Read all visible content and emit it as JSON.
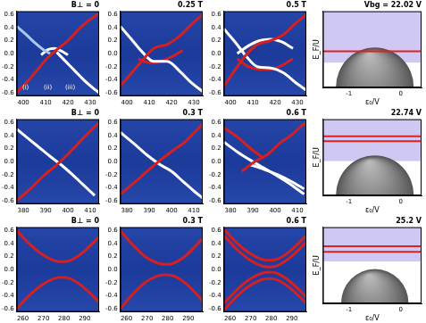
{
  "chart_data": [
    {
      "type": "line",
      "title": "B⊥ = 0",
      "xlim": [
        397,
        434
      ],
      "xticks": [
        400,
        410,
        420,
        430
      ],
      "ylim": [
        -0.65,
        0.65
      ],
      "yticks": [
        -0.6,
        -0.4,
        -0.2,
        {
          "value": 0,
          "label": "0.0"
        },
        0.2,
        0.4,
        0.6
      ],
      "grid": false,
      "series": [
        {
          "color": "#d42020",
          "x": [
            397,
            402,
            407,
            411,
            415,
            420,
            425,
            429,
            434
          ],
          "values": [
            -0.6,
            -0.42,
            -0.22,
            -0.06,
            0.06,
            0.2,
            0.38,
            0.5,
            0.62
          ]
        },
        {
          "color": "#ffffff",
          "x": [
            415,
            419,
            423,
            427,
            431,
            434
          ],
          "values": [
            0.02,
            -0.12,
            -0.26,
            -0.4,
            -0.52,
            -0.6
          ]
        },
        {
          "color": "#a8c8f0",
          "x": [
            397,
            401,
            405,
            409,
            412
          ],
          "values": [
            0.42,
            0.3,
            0.17,
            0.06,
            0.0
          ]
        },
        {
          "color": "#ffffff",
          "x": [
            408,
            411,
            414,
            417,
            420
          ],
          "values": [
            -0.02,
            0.06,
            0.08,
            0.04,
            -0.02
          ]
        }
      ],
      "annotations": [
        {
          "text": "(i)",
          "x": 401,
          "y": -0.52
        },
        {
          "text": "(ii)",
          "x": 411,
          "y": -0.52
        },
        {
          "text": "(iii)",
          "x": 421,
          "y": -0.52
        }
      ]
    },
    {
      "type": "line",
      "title": "0.25 T",
      "xlim": [
        397,
        434
      ],
      "xticks": [
        400,
        410,
        420,
        430
      ],
      "ylim": [
        -0.65,
        0.65
      ],
      "yticks": [
        -0.6,
        -0.4,
        -0.2,
        {
          "value": 0,
          "label": "0.0"
        },
        0.2,
        0.4,
        0.6
      ],
      "grid": false,
      "series": [
        {
          "color": "#d42020",
          "x": [
            397,
            402,
            407,
            412,
            418,
            424,
            429,
            434
          ],
          "values": [
            -0.5,
            -0.3,
            -0.1,
            0.08,
            0.14,
            0.28,
            0.45,
            0.6
          ]
        },
        {
          "color": "#ffffff",
          "x": [
            397,
            402,
            407,
            412,
            418,
            424,
            429,
            434
          ],
          "values": [
            0.42,
            0.22,
            0.02,
            -0.12,
            -0.12,
            -0.28,
            -0.45,
            -0.58
          ]
        },
        {
          "color": "#d42020",
          "x": [
            405,
            410,
            415,
            420,
            425
          ],
          "values": [
            -0.08,
            -0.14,
            -0.12,
            -0.05,
            0.05
          ]
        }
      ]
    },
    {
      "type": "line",
      "title": "0.5 T",
      "xlim": [
        397,
        434
      ],
      "xticks": [
        400,
        410,
        420,
        430
      ],
      "ylim": [
        -0.65,
        0.65
      ],
      "yticks": [
        -0.6,
        -0.4,
        -0.2,
        {
          "value": 0,
          "label": "0.0"
        },
        0.2,
        0.4,
        0.6
      ],
      "grid": false,
      "series": [
        {
          "color": "#d42020",
          "x": [
            397,
            402,
            407,
            412,
            418,
            424,
            429,
            434
          ],
          "values": [
            -0.5,
            -0.25,
            -0.02,
            0.14,
            0.2,
            0.3,
            0.46,
            0.6
          ]
        },
        {
          "color": "#ffffff",
          "x": [
            397,
            402,
            407,
            412,
            418,
            424,
            429,
            434
          ],
          "values": [
            0.38,
            0.18,
            -0.04,
            -0.2,
            -0.22,
            -0.3,
            -0.44,
            -0.56
          ]
        },
        {
          "color": "#ffffff",
          "x": [
            403,
            408,
            413,
            418,
            423,
            428
          ],
          "values": [
            0.0,
            0.12,
            0.2,
            0.22,
            0.18,
            0.08
          ]
        },
        {
          "color": "#d42020",
          "x": [
            403,
            408,
            413,
            418,
            423,
            428
          ],
          "values": [
            -0.08,
            -0.2,
            -0.24,
            -0.24,
            -0.18,
            -0.08
          ]
        }
      ]
    },
    {
      "type": "diagram",
      "title": "Vbg = 22.02 V",
      "x_label": "ε₀/V",
      "y_label": "E_F/U",
      "xlim": [
        -1.5,
        0.4
      ],
      "xticks": [
        -1,
        0
      ],
      "ylim": [
        -1,
        1
      ],
      "tick_labels": "x",
      "band": [
        -0.35,
        1
      ],
      "dome": {
        "x": [
          -1.25,
          0.25
        ],
        "top": 0.05
      },
      "levels": [
        -0.05
      ],
      "color": "#e02020"
    },
    {
      "type": "line",
      "title": "B⊥ = 0",
      "xlim": [
        377,
        414
      ],
      "xticks": [
        380,
        390,
        400,
        410
      ],
      "ylim": [
        -0.65,
        0.65
      ],
      "yticks": [
        -0.6,
        -0.4,
        -0.2,
        {
          "value": 0,
          "label": "0.0"
        },
        0.2,
        0.4,
        0.6
      ],
      "grid": false,
      "series": [
        {
          "color": "#d42020",
          "x": [
            377,
            383,
            389,
            395,
            399,
            403,
            408,
            414
          ],
          "values": [
            -0.6,
            -0.42,
            -0.22,
            -0.05,
            0.08,
            0.22,
            0.4,
            0.6
          ]
        },
        {
          "color": "#ffffff",
          "x": [
            377,
            382,
            387,
            392,
            397,
            402,
            407,
            412
          ],
          "values": [
            0.5,
            0.36,
            0.22,
            0.08,
            -0.05,
            -0.2,
            -0.36,
            -0.52
          ]
        }
      ]
    },
    {
      "type": "line",
      "title": "0.3 T",
      "xlim": [
        377,
        414
      ],
      "xticks": [
        380,
        390,
        400,
        410
      ],
      "ylim": [
        -0.65,
        0.65
      ],
      "yticks": [
        -0.6,
        -0.4,
        -0.2,
        {
          "value": 0,
          "label": "0.0"
        },
        0.2,
        0.4,
        0.6
      ],
      "grid": false,
      "series": [
        {
          "color": "#d42020",
          "x": [
            377,
            384,
            390,
            396,
            401,
            406,
            410,
            414
          ],
          "values": [
            -0.5,
            -0.3,
            -0.12,
            0.05,
            0.18,
            0.3,
            0.44,
            0.58
          ]
        },
        {
          "color": "#ffffff",
          "x": [
            377,
            383,
            389,
            395,
            400,
            405,
            410,
            414
          ],
          "values": [
            0.45,
            0.28,
            0.1,
            -0.05,
            -0.15,
            -0.3,
            -0.45,
            -0.56
          ]
        }
      ]
    },
    {
      "type": "line",
      "title": "0.6 T",
      "xlim": [
        377,
        414
      ],
      "xticks": [
        380,
        390,
        400,
        410
      ],
      "ylim": [
        -0.65,
        0.65
      ],
      "yticks": [
        -0.6,
        -0.4,
        -0.2,
        {
          "value": 0,
          "label": "0.0"
        },
        0.2,
        0.4,
        0.6
      ],
      "grid": false,
      "series": [
        {
          "color": "#d42020",
          "x": [
            385,
            391,
            397,
            402,
            407,
            412,
            414
          ],
          "values": [
            -0.15,
            0.0,
            0.12,
            0.28,
            0.4,
            0.55,
            0.6
          ]
        },
        {
          "color": "#ffffff",
          "x": [
            377,
            383,
            389,
            395,
            401,
            407,
            413
          ],
          "values": [
            0.3,
            0.15,
            0.02,
            -0.1,
            -0.22,
            -0.35,
            -0.5
          ]
        },
        {
          "color": "#ffffff",
          "x": [
            389,
            395,
            401,
            407,
            413
          ],
          "values": [
            -0.05,
            -0.12,
            -0.2,
            -0.3,
            -0.42
          ]
        },
        {
          "color": "#d42020",
          "x": [
            377,
            383,
            389,
            395
          ],
          "values": [
            0.52,
            0.38,
            0.2,
            0.05
          ]
        }
      ]
    },
    {
      "type": "diagram",
      "title": "22.74 V",
      "x_label": "ε₀/V",
      "y_label": "E_F/U",
      "xlim": [
        -1.5,
        0.4
      ],
      "xticks": [
        -1,
        0
      ],
      "ylim": [
        -1,
        1
      ],
      "tick_labels": "x",
      "band": [
        -0.1,
        1
      ],
      "dome": {
        "x": [
          -1.25,
          0.25
        ],
        "top": 0.05
      },
      "levels": [
        0.55,
        0.42
      ],
      "color": "#e02020"
    },
    {
      "type": "line",
      "title": "B⊥ = 0",
      "xlim": [
        257,
        297
      ],
      "xticks": [
        260,
        270,
        280,
        290
      ],
      "ylim": [
        -0.65,
        0.65
      ],
      "yticks": [
        -0.6,
        -0.4,
        -0.2,
        {
          "value": 0,
          "label": "0.0"
        },
        0.2,
        0.4,
        0.6
      ],
      "grid": false,
      "series": [
        {
          "color": "#d42020",
          "x": [
            257,
            263,
            269,
            275,
            279,
            283,
            289,
            297
          ],
          "values": [
            0.6,
            0.4,
            0.24,
            0.14,
            0.12,
            0.14,
            0.26,
            0.5
          ]
        },
        {
          "color": "#d42020",
          "x": [
            257,
            263,
            269,
            275,
            279,
            283,
            289,
            297
          ],
          "values": [
            -0.6,
            -0.4,
            -0.24,
            -0.14,
            -0.12,
            -0.14,
            -0.26,
            -0.5
          ]
        }
      ]
    },
    {
      "type": "line",
      "title": "0.3 T",
      "xlim": [
        257,
        297
      ],
      "xticks": [
        260,
        270,
        280,
        290
      ],
      "ylim": [
        -0.65,
        0.65
      ],
      "yticks": [
        -0.6,
        -0.4,
        -0.2,
        {
          "value": 0,
          "label": "0.0"
        },
        0.2,
        0.4,
        0.6
      ],
      "grid": false,
      "series": [
        {
          "color": "#d42020",
          "x": [
            257,
            263,
            269,
            275,
            279,
            283,
            289,
            297
          ],
          "values": [
            0.6,
            0.38,
            0.2,
            0.1,
            0.08,
            0.1,
            0.22,
            0.48
          ]
        },
        {
          "color": "#d42020",
          "x": [
            257,
            263,
            269,
            275,
            279,
            283,
            289,
            297
          ],
          "values": [
            -0.6,
            -0.38,
            -0.2,
            -0.1,
            -0.08,
            -0.1,
            -0.22,
            -0.48
          ]
        }
      ]
    },
    {
      "type": "line",
      "title": "0.6 T",
      "xlim": [
        257,
        297
      ],
      "xticks": [
        260,
        270,
        280,
        290
      ],
      "ylim": [
        -0.65,
        0.65
      ],
      "yticks": [
        -0.6,
        -0.4,
        -0.2,
        {
          "value": 0,
          "label": "0.0"
        },
        0.2,
        0.4,
        0.6
      ],
      "grid": false,
      "series": [
        {
          "color": "#d42020",
          "x": [
            257,
            263,
            269,
            275,
            279,
            283,
            289,
            297
          ],
          "values": [
            0.62,
            0.42,
            0.26,
            0.16,
            0.14,
            0.16,
            0.28,
            0.52
          ]
        },
        {
          "color": "#d42020",
          "x": [
            257,
            263,
            269,
            275,
            279,
            283,
            289,
            297
          ],
          "values": [
            0.52,
            0.32,
            0.16,
            0.06,
            0.04,
            0.06,
            0.18,
            0.42
          ]
        },
        {
          "color": "#d42020",
          "x": [
            257,
            263,
            269,
            275,
            279,
            283,
            289,
            297
          ],
          "values": [
            -0.52,
            -0.32,
            -0.16,
            -0.06,
            -0.04,
            -0.06,
            -0.18,
            -0.42
          ]
        },
        {
          "color": "#d42020",
          "x": [
            257,
            263,
            269,
            275,
            279,
            283,
            289,
            297
          ],
          "values": [
            -0.62,
            -0.42,
            -0.26,
            -0.16,
            -0.14,
            -0.16,
            -0.28,
            -0.52
          ]
        }
      ]
    },
    {
      "type": "diagram",
      "title": "25.2 V",
      "x_label": "ε₀/V",
      "y_label": "E_F/U",
      "xlim": [
        -1.5,
        0.4
      ],
      "xticks": [
        -1,
        0
      ],
      "ylim": [
        -1,
        1
      ],
      "tick_labels": "x",
      "band": [
        0.1,
        1
      ],
      "dome": {
        "x": [
          -1.15,
          0.15
        ],
        "top": -0.1
      },
      "levels": [
        0.5,
        0.35
      ],
      "color": "#e02020"
    }
  ]
}
